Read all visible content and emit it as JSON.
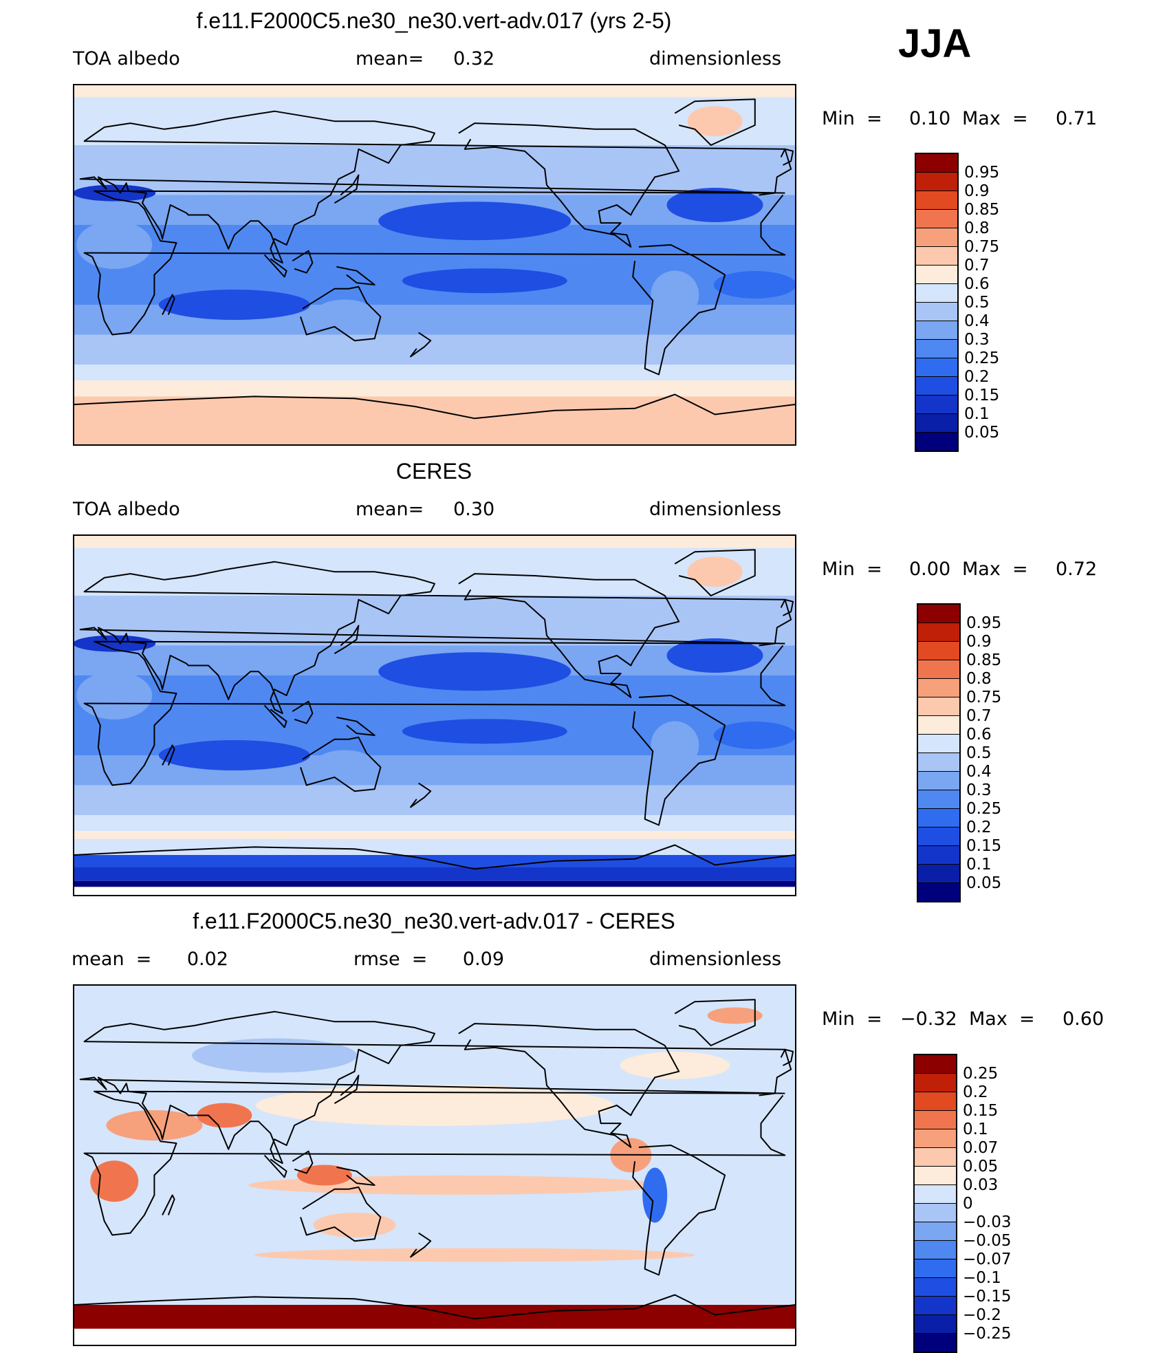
{
  "season": "JJA",
  "colors": {
    "abs_scale": [
      "#00007d",
      "#0a1fa7",
      "#1435c9",
      "#1f4ee3",
      "#2f6cf0",
      "#4f88f1",
      "#7aa6f2",
      "#a9c5f6",
      "#d5e5fb",
      "#fdebdb",
      "#fcc9ae",
      "#f7a07c",
      "#f0754e",
      "#e24a22",
      "#c01f08",
      "#8d0000"
    ],
    "diff_scale": [
      "#00007d",
      "#0a1fa7",
      "#1435c9",
      "#1f4ee3",
      "#2f6cf0",
      "#4f88f1",
      "#7aa6f2",
      "#a9c5f6",
      "#d5e5fb",
      "#fdebdb",
      "#fcc9ae",
      "#f7a07c",
      "#f0754e",
      "#e24a22",
      "#c01f08",
      "#8d0000"
    ]
  },
  "panels": [
    {
      "title": "f.e11.F2000C5.ne30_ne30.vert-adv.017 (yrs 2-5)",
      "left": "TOA  albedo",
      "center": "mean=     0.32",
      "right": "dimensionless",
      "min_label": "Min  =",
      "min_value": "0.10",
      "max_label": "Max  =",
      "max_value": "0.71",
      "colorbar_labels": [
        "0.95",
        "0.9",
        "0.85",
        "0.8",
        "0.75",
        "0.7",
        "0.6",
        "0.5",
        "0.4",
        "0.3",
        "0.25",
        "0.2",
        "0.15",
        "0.1",
        "0.05"
      ]
    },
    {
      "title": "CERES",
      "left": "TOA  albedo",
      "center": "mean=     0.30",
      "right": "dimensionless",
      "min_label": "Min  =",
      "min_value": "0.00",
      "max_label": "Max  =",
      "max_value": "0.72",
      "colorbar_labels": [
        "0.95",
        "0.9",
        "0.85",
        "0.8",
        "0.75",
        "0.7",
        "0.6",
        "0.5",
        "0.4",
        "0.3",
        "0.25",
        "0.2",
        "0.15",
        "0.1",
        "0.05"
      ]
    },
    {
      "title": "f.e11.F2000C5.ne30_ne30.vert-adv.017 - CERES",
      "left": "mean  =      0.02",
      "center": "rmse  =      0.09",
      "right": "dimensionless",
      "min_label": "Min  =",
      "min_value": "−0.32",
      "max_label": "Max  =",
      "max_value": "0.60",
      "colorbar_labels": [
        "0.25",
        "0.2",
        "0.15",
        "0.1",
        "0.07",
        "0.05",
        "0.03",
        "0",
        "−0.03",
        "−0.05",
        "−0.07",
        "−0.1",
        "−0.15",
        "−0.2",
        "−0.25"
      ]
    }
  ],
  "chart_data": [
    {
      "type": "heatmap",
      "title": "f.e11.F2000C5.ne30_ne30.vert-adv.017 (yrs 2-5)",
      "variable": "TOA  albedo",
      "units": "dimensionless",
      "mean": 0.32,
      "min": 0.1,
      "max": 0.71,
      "levels": [
        0.05,
        0.1,
        0.15,
        0.2,
        0.25,
        0.3,
        0.4,
        0.5,
        0.6,
        0.7,
        0.75,
        0.8,
        0.85,
        0.9,
        0.95
      ]
    },
    {
      "type": "heatmap",
      "title": "CERES",
      "variable": "TOA  albedo",
      "units": "dimensionless",
      "mean": 0.3,
      "min": 0.0,
      "max": 0.72,
      "levels": [
        0.05,
        0.1,
        0.15,
        0.2,
        0.25,
        0.3,
        0.4,
        0.5,
        0.6,
        0.7,
        0.75,
        0.8,
        0.85,
        0.9,
        0.95
      ]
    },
    {
      "type": "heatmap",
      "title": "f.e11.F2000C5.ne30_ne30.vert-adv.017 - CERES",
      "units": "dimensionless",
      "mean": 0.02,
      "rmse": 0.09,
      "min": -0.32,
      "max": 0.6,
      "levels": [
        -0.25,
        -0.2,
        -0.15,
        -0.1,
        -0.07,
        -0.05,
        -0.03,
        0,
        0.03,
        0.05,
        0.07,
        0.1,
        0.15,
        0.2,
        0.25
      ]
    }
  ]
}
